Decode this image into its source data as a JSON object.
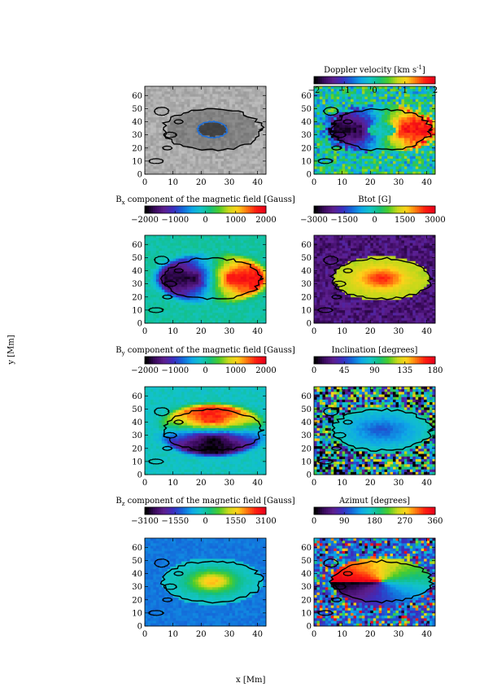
{
  "figure": {
    "global_ylabel": "y [Mm]",
    "global_xlabel": "x [Mm]"
  },
  "colors": {
    "rainbow": [
      "#000000",
      "#3a0a5e",
      "#5d1f8f",
      "#3b2dbf",
      "#1565d8",
      "#0ea5e8",
      "#12c3c9",
      "#14c07d",
      "#4ccc2a",
      "#c9d81a",
      "#ffd21a",
      "#ff7a10",
      "#ff1e10",
      "#e8001a"
    ],
    "gray": [
      "#3a3a3a",
      "#d9d9d9"
    ],
    "contour": "#000000"
  },
  "chart_data": [
    {
      "id": "intensity",
      "type": "heatmap",
      "colormap": "gray",
      "field": "intensity",
      "title": "",
      "colorbar": null,
      "xlim": [
        0,
        43
      ],
      "ylim": [
        0,
        67
      ],
      "xticks": [
        "0",
        "10",
        "20",
        "30",
        "40"
      ],
      "yticks": [
        "0",
        "10",
        "20",
        "30",
        "40",
        "50",
        "60"
      ]
    },
    {
      "id": "doppler",
      "type": "heatmap",
      "colormap": "rainbow",
      "field": "doppler",
      "title": "Doppler velocity [km s",
      "title_sup": "-1",
      "title_end": "]",
      "colorbar": {
        "ticks": [
          "−2",
          "−1",
          "0",
          "1",
          "2"
        ],
        "range": [
          -2,
          2
        ]
      },
      "xlim": [
        0,
        43
      ],
      "ylim": [
        0,
        67
      ],
      "xticks": [
        "0",
        "10",
        "20",
        "30",
        "40"
      ],
      "yticks": [
        "0",
        "10",
        "20",
        "30",
        "40",
        "50",
        "60"
      ]
    },
    {
      "id": "bx",
      "type": "heatmap",
      "colormap": "rainbow",
      "field": "bx",
      "title": "B",
      "title_sub": "x",
      "title_end": " component of the magnetic field [Gauss]",
      "colorbar": {
        "ticks": [
          "−2000",
          "−1000",
          "0",
          "1000",
          "2000"
        ],
        "range": [
          -2000,
          2000
        ]
      },
      "xlim": [
        0,
        43
      ],
      "ylim": [
        0,
        67
      ],
      "xticks": [
        "0",
        "10",
        "20",
        "30",
        "40"
      ],
      "yticks": [
        "0",
        "10",
        "20",
        "30",
        "40",
        "50",
        "60"
      ]
    },
    {
      "id": "btot",
      "type": "heatmap",
      "colormap": "rainbow",
      "field": "btot",
      "title": "Btot [G]",
      "colorbar": {
        "ticks": [
          "−3000",
          "−1500",
          "0",
          "1500",
          "3000"
        ],
        "range": [
          -3000,
          3000
        ]
      },
      "xlim": [
        0,
        43
      ],
      "ylim": [
        0,
        67
      ],
      "xticks": [
        "0",
        "10",
        "20",
        "30",
        "40"
      ],
      "yticks": [
        "0",
        "10",
        "20",
        "30",
        "40",
        "50",
        "60"
      ]
    },
    {
      "id": "by",
      "type": "heatmap",
      "colormap": "rainbow",
      "field": "by",
      "title": "B",
      "title_sub": "y",
      "title_end": " component of the magnetic field [Gauss]",
      "colorbar": {
        "ticks": [
          "−2000",
          "−1000",
          "0",
          "1000",
          "2000"
        ],
        "range": [
          -2000,
          2000
        ]
      },
      "xlim": [
        0,
        43
      ],
      "ylim": [
        0,
        67
      ],
      "xticks": [
        "0",
        "10",
        "20",
        "30",
        "40"
      ],
      "yticks": [
        "0",
        "10",
        "20",
        "30",
        "40",
        "50",
        "60"
      ]
    },
    {
      "id": "inclination",
      "type": "heatmap",
      "colormap": "rainbow",
      "field": "inclination",
      "title": "Inclination [degrees]",
      "colorbar": {
        "ticks": [
          "0",
          "45",
          "90",
          "135",
          "180"
        ],
        "range": [
          0,
          180
        ]
      },
      "xlim": [
        0,
        43
      ],
      "ylim": [
        0,
        67
      ],
      "xticks": [
        "0",
        "10",
        "20",
        "30",
        "40"
      ],
      "yticks": [
        "0",
        "10",
        "20",
        "30",
        "40",
        "50",
        "60"
      ]
    },
    {
      "id": "bz",
      "type": "heatmap",
      "colormap": "rainbow",
      "field": "bz",
      "title": "B",
      "title_sub": "z",
      "title_end": " component of the magnetic field [Gauss]",
      "colorbar": {
        "ticks": [
          "−3100",
          "−1550",
          "0",
          "1550",
          "3100"
        ],
        "range": [
          -3100,
          3100
        ]
      },
      "xlim": [
        0,
        43
      ],
      "ylim": [
        0,
        67
      ],
      "xticks": [
        "0",
        "10",
        "20",
        "30",
        "40"
      ],
      "yticks": [
        "0",
        "10",
        "20",
        "30",
        "40",
        "50",
        "60"
      ]
    },
    {
      "id": "azimuth",
      "type": "heatmap",
      "colormap": "rainbow",
      "field": "azimuth",
      "title": "Azimut [degrees]",
      "colorbar": {
        "ticks": [
          "0",
          "90",
          "180",
          "270",
          "360"
        ],
        "range": [
          0,
          360
        ]
      },
      "xlim": [
        0,
        43
      ],
      "ylim": [
        0,
        67
      ],
      "xticks": [
        "0",
        "10",
        "20",
        "30",
        "40"
      ],
      "yticks": [
        "0",
        "10",
        "20",
        "30",
        "40",
        "50",
        "60"
      ]
    }
  ]
}
